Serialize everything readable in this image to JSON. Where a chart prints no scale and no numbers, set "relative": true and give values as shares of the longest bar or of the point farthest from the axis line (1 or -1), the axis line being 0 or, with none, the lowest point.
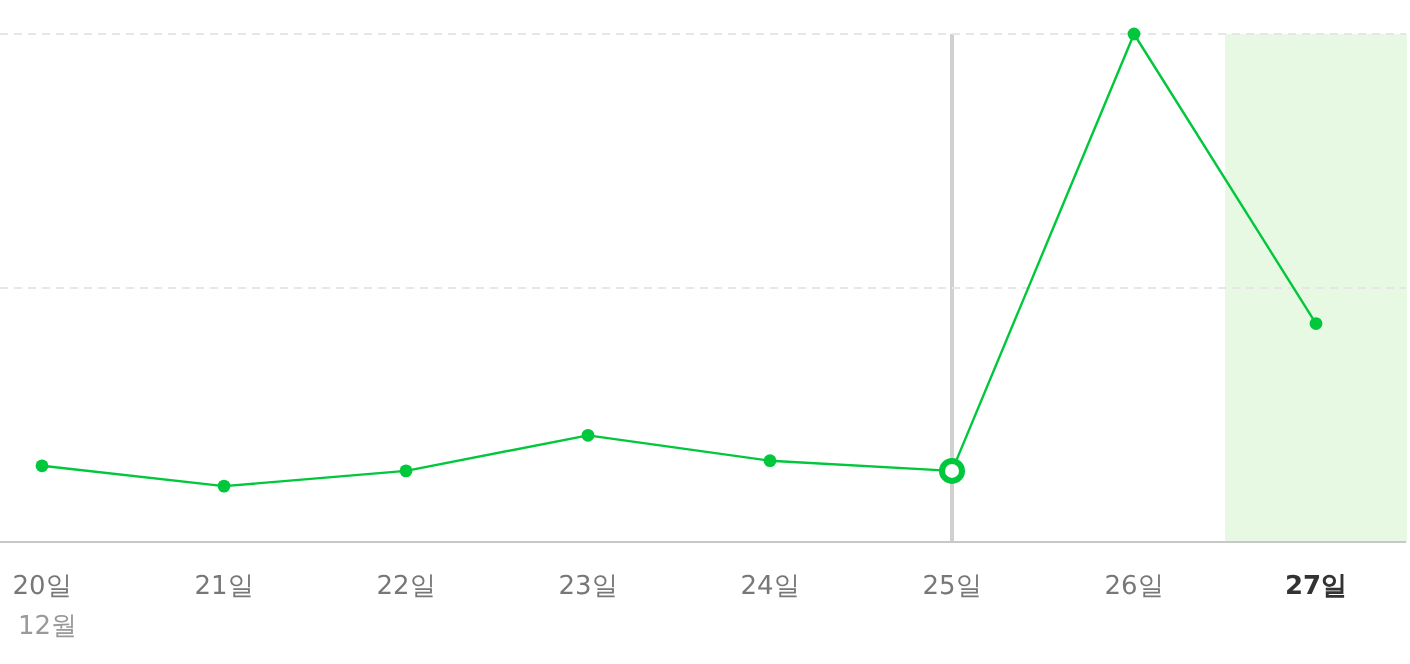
{
  "chart_data": {
    "type": "line",
    "relative": true,
    "categories": [
      "20일",
      "21일",
      "22일",
      "23일",
      "24일",
      "25일",
      "26일",
      "27일"
    ],
    "series": [
      {
        "color": "#00c73c",
        "values": [
          0.15,
          0.11,
          0.14,
          0.21,
          0.16,
          0.14,
          1,
          0.43
        ]
      }
    ],
    "marker": "circle",
    "ref_lines": [
      {
        "axis": "x",
        "value": "25일",
        "color": "#d0d0d0"
      },
      {
        "axis": "y",
        "value": 0.5,
        "color": "#e6e6e6",
        "line_style": "dashed"
      },
      {
        "axis": "y",
        "value": 1,
        "color": "#e6e6e6",
        "line_style": "dashed"
      }
    ],
    "bands": [
      {
        "axis": "x",
        "from": "27일",
        "to": "27일",
        "color": "#e8f9e3"
      }
    ],
    "annotations": [
      "12월"
    ]
  }
}
